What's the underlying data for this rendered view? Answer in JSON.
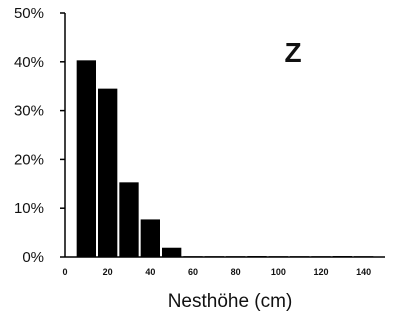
{
  "chart_data": {
    "type": "bar",
    "panel_label": "Z",
    "xlabel": "Nesthöhe (cm)",
    "ylabel": "",
    "x_ticks": [
      0,
      20,
      40,
      60,
      80,
      100,
      120,
      140
    ],
    "y_ticks": [
      "0%",
      "10%",
      "20%",
      "30%",
      "40%",
      "50%"
    ],
    "xlim": [
      0,
      150
    ],
    "ylim": [
      0,
      50
    ],
    "bin_width": 10,
    "bins": [
      {
        "x": 10,
        "value": 40.3
      },
      {
        "x": 20,
        "value": 34.5
      },
      {
        "x": 30,
        "value": 15.3
      },
      {
        "x": 40,
        "value": 7.7
      },
      {
        "x": 50,
        "value": 1.9
      },
      {
        "x": 60,
        "value": 0.1
      },
      {
        "x": 70,
        "value": 0.1
      },
      {
        "x": 80,
        "value": 0.1
      },
      {
        "x": 90,
        "value": 0.2
      },
      {
        "x": 100,
        "value": 0.1
      },
      {
        "x": 110,
        "value": 0.1
      },
      {
        "x": 120,
        "value": 0.1
      },
      {
        "x": 130,
        "value": 0.2
      },
      {
        "x": 140,
        "value": 0.1
      }
    ],
    "grid": false,
    "legend": "none"
  }
}
